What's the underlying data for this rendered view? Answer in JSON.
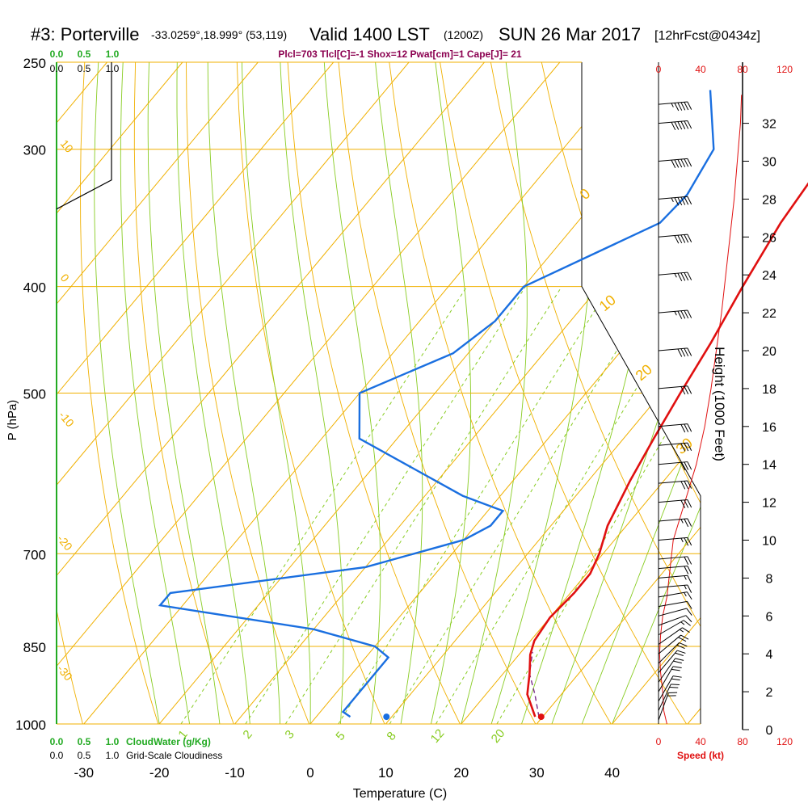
{
  "header": {
    "station": "#3: Porterville",
    "coords": "-33.0259°,18.999° (53,119)",
    "valid": "Valid 1400 LST",
    "utc": "(1200Z)",
    "date": "SUN 26 Mar 2017",
    "forecast": "[12hrFcst@0434z]"
  },
  "indices": "Plcl=703 Tlcl[C]=-1 Shox=12 Pwat[cm]=1 Cape[J]= 21",
  "colors": {
    "isotherm": "#f0b000",
    "dry_adiabat": "#f0b000",
    "moist_adiabat": "#88cc22",
    "mixing_ratio": "#88cc22",
    "temperature": "#e01010",
    "dewpoint": "#1a6fe0",
    "parcel": "#7a2a8a",
    "cloud": "#22aa22",
    "speed": "#e01010",
    "indices": "#8b0050"
  },
  "chart_data": {
    "type": "line",
    "ylabel": "P (hPa)",
    "xlabel": "Temperature (C)",
    "pressure_ticks": [
      "250",
      "300",
      "400",
      "500",
      "700",
      "850",
      "1000"
    ],
    "temp_ticks": [
      "-30",
      "-20",
      "-10",
      "0",
      "10",
      "20",
      "30",
      "40"
    ],
    "isotherm_labels": [
      {
        "t": 10,
        "label": "10"
      },
      {
        "t": 0,
        "label": "0"
      },
      {
        "t": -10,
        "label": "-10"
      },
      {
        "t": -20,
        "label": "-20"
      },
      {
        "t": -30,
        "label": "-30"
      }
    ],
    "theta_labels": [
      "0",
      "10",
      "20",
      "30"
    ],
    "mixing_ratio_labels": [
      "1",
      "2",
      "3",
      "5",
      "8",
      "12",
      "20"
    ],
    "temperature_profile": [
      {
        "p": 985,
        "t": 29
      },
      {
        "p": 940,
        "t": 25.5
      },
      {
        "p": 900,
        "t": 23.5
      },
      {
        "p": 865,
        "t": 21.5
      },
      {
        "p": 840,
        "t": 20.5
      },
      {
        "p": 800,
        "t": 20.0
      },
      {
        "p": 760,
        "t": 20.5
      },
      {
        "p": 730,
        "t": 20.5
      },
      {
        "p": 700,
        "t": 19.5
      },
      {
        "p": 660,
        "t": 17.5
      },
      {
        "p": 600,
        "t": 15.5
      },
      {
        "p": 550,
        "t": 14
      },
      {
        "p": 500,
        "t": 12.5
      },
      {
        "p": 450,
        "t": 11
      },
      {
        "p": 400,
        "t": 9
      },
      {
        "p": 350,
        "t": 7
      },
      {
        "p": 310,
        "t": 6
      },
      {
        "p": 265,
        "t": 5
      }
    ],
    "dewpoint_profile": [
      {
        "p": 985,
        "t": 4.5
      },
      {
        "p": 975,
        "t": 3
      },
      {
        "p": 940,
        "t": 3
      },
      {
        "p": 870,
        "t": 3
      },
      {
        "p": 850,
        "t": 0
      },
      {
        "p": 820,
        "t": -10
      },
      {
        "p": 780,
        "t": -33
      },
      {
        "p": 760,
        "t": -33
      },
      {
        "p": 720,
        "t": -10
      },
      {
        "p": 680,
        "t": 0
      },
      {
        "p": 660,
        "t": 2
      },
      {
        "p": 640,
        "t": 2
      },
      {
        "p": 620,
        "t": -5
      },
      {
        "p": 550,
        "t": -25
      },
      {
        "p": 500,
        "t": -30
      },
      {
        "p": 460,
        "t": -22
      },
      {
        "p": 430,
        "t": -20
      },
      {
        "p": 400,
        "t": -20
      },
      {
        "p": 350,
        "t": -9
      },
      {
        "p": 330,
        "t": -8.5
      },
      {
        "p": 300,
        "t": -10
      },
      {
        "p": 265,
        "t": -17
      }
    ],
    "parcel_profile": [
      {
        "p": 985,
        "t": 29.5
      },
      {
        "p": 940,
        "t": 26.5
      },
      {
        "p": 900,
        "t": 23.5
      },
      {
        "p": 860,
        "t": 21.5
      }
    ],
    "surface_temperature": 29.8,
    "surface_dewpoint": 9.3,
    "wind_barbs_kt": [
      {
        "h": 0.5,
        "speed": 20,
        "dir": 200
      },
      {
        "h": 1,
        "speed": 20,
        "dir": 205
      },
      {
        "h": 1.5,
        "speed": 20,
        "dir": 210
      },
      {
        "h": 2,
        "speed": 20,
        "dir": 210
      },
      {
        "h": 2.5,
        "speed": 20,
        "dir": 215
      },
      {
        "h": 3,
        "speed": 20,
        "dir": 220
      },
      {
        "h": 3.5,
        "speed": 20,
        "dir": 225
      },
      {
        "h": 4,
        "speed": 20,
        "dir": 230
      },
      {
        "h": 4.5,
        "speed": 15,
        "dir": 235
      },
      {
        "h": 5,
        "speed": 15,
        "dir": 240
      },
      {
        "h": 5.5,
        "speed": 10,
        "dir": 250
      },
      {
        "h": 6,
        "speed": 10,
        "dir": 255
      },
      {
        "h": 6.5,
        "speed": 10,
        "dir": 260
      },
      {
        "h": 7,
        "speed": 15,
        "dir": 260
      },
      {
        "h": 7.5,
        "speed": 15,
        "dir": 265
      },
      {
        "h": 8,
        "speed": 15,
        "dir": 265
      },
      {
        "h": 8.5,
        "speed": 20,
        "dir": 265
      },
      {
        "h": 9,
        "speed": 20,
        "dir": 265
      },
      {
        "h": 10,
        "speed": 25,
        "dir": 265
      },
      {
        "h": 11,
        "speed": 25,
        "dir": 265
      },
      {
        "h": 12,
        "speed": 30,
        "dir": 265
      },
      {
        "h": 13,
        "speed": 30,
        "dir": 265
      },
      {
        "h": 14,
        "speed": 30,
        "dir": 265
      },
      {
        "h": 15,
        "speed": 30,
        "dir": 265
      },
      {
        "h": 16,
        "speed": 30,
        "dir": 265
      },
      {
        "h": 18,
        "speed": 30,
        "dir": 265
      },
      {
        "h": 20,
        "speed": 40,
        "dir": 265
      },
      {
        "h": 22,
        "speed": 45,
        "dir": 265
      },
      {
        "h": 24,
        "speed": 45,
        "dir": 265
      },
      {
        "h": 26,
        "speed": 50,
        "dir": 265
      },
      {
        "h": 28,
        "speed": 55,
        "dir": 265
      },
      {
        "h": 30,
        "speed": 60,
        "dir": 265
      },
      {
        "h": 32,
        "speed": 60,
        "dir": 265
      },
      {
        "h": 33,
        "speed": 55,
        "dir": 265
      }
    ],
    "wind_speed_profile": [
      {
        "h": 0.3,
        "speed": 8
      },
      {
        "h": 1,
        "speed": 5
      },
      {
        "h": 2,
        "speed": 4
      },
      {
        "h": 3,
        "speed": 2
      },
      {
        "h": 4,
        "speed": 1
      },
      {
        "h": 5,
        "speed": 2
      },
      {
        "h": 6,
        "speed": 4
      },
      {
        "h": 7,
        "speed": 8
      },
      {
        "h": 8,
        "speed": 10
      },
      {
        "h": 9,
        "speed": 12
      },
      {
        "h": 10,
        "speed": 14
      },
      {
        "h": 12,
        "speed": 25
      },
      {
        "h": 14,
        "speed": 36
      },
      {
        "h": 16,
        "speed": 44
      },
      {
        "h": 18,
        "speed": 50
      },
      {
        "h": 20,
        "speed": 55
      },
      {
        "h": 22,
        "speed": 60
      },
      {
        "h": 24,
        "speed": 64
      },
      {
        "h": 26,
        "speed": 68
      },
      {
        "h": 28,
        "speed": 72
      },
      {
        "h": 30,
        "speed": 75
      },
      {
        "h": 32,
        "speed": 78
      },
      {
        "h": 33.5,
        "speed": 79
      }
    ],
    "cloudiness_profile": [
      {
        "p": 320,
        "c": 1.0
      },
      {
        "p": 250,
        "c": 1.0
      }
    ],
    "height_ticks": [
      "0",
      "2",
      "4",
      "6",
      "8",
      "10",
      "12",
      "14",
      "16",
      "18",
      "20",
      "22",
      "24",
      "26",
      "28",
      "30",
      "32"
    ],
    "height_axis_label": "Height (1000 Feet)",
    "speed_ticks": [
      "0",
      "40",
      "80",
      "120"
    ],
    "speed_axis_label": "Speed (kt)",
    "cloud_water_ticks": [
      "0.0",
      "0.5",
      "1.0"
    ],
    "cloud_water_label": "CloudWater (g/Kg)",
    "cloudiness_ticks": [
      "0.0",
      "0.5",
      "1.0"
    ],
    "cloudiness_label": "Grid-Scale Cloudiness"
  }
}
